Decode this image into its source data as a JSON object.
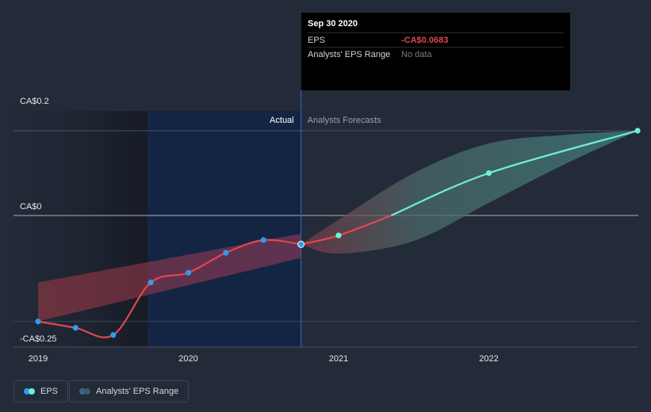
{
  "chart_data": {
    "type": "line",
    "x_ticks": [
      "2019",
      "2020",
      "2021",
      "2022"
    ],
    "y_ticks": [
      "CA$0.2",
      "CA$0",
      "-CA$0.25"
    ],
    "ylim": [
      -0.25,
      0.2
    ],
    "xlim": [
      2019.0,
      2022.99
    ],
    "region_labels": {
      "actual": "Actual",
      "forecast": "Analysts Forecasts"
    },
    "split_x": 2020.75,
    "colors": {
      "eps": "#e2464f",
      "forecast": "#6ef0d8",
      "eps_marker": "#2d9cf0"
    },
    "series": [
      {
        "name": "EPS",
        "x": [
          2019.0,
          2019.25,
          2019.5,
          2019.75,
          2020.0,
          2020.25,
          2020.5,
          2020.75
        ],
        "y": [
          -0.25,
          -0.265,
          -0.282,
          -0.158,
          -0.135,
          -0.088,
          -0.058,
          -0.068
        ]
      },
      {
        "name": "EPS Forecast",
        "x": [
          2020.75,
          2021.0,
          2021.35,
          2022.0,
          2022.99
        ],
        "y": [
          -0.068,
          -0.047,
          0.0,
          0.1,
          0.2
        ]
      }
    ],
    "range_band": {
      "name": "Analysts' EPS Range",
      "actual": {
        "x": [
          2019.0,
          2020.75
        ],
        "upper": [
          -0.158,
          -0.043
        ],
        "lower": [
          -0.25,
          -0.1
        ]
      },
      "forecast": {
        "x": [
          2020.75,
          2021.0,
          2021.5,
          2022.0,
          2022.5,
          2022.99
        ],
        "upper": [
          -0.068,
          -0.01,
          0.1,
          0.17,
          0.19,
          0.2
        ],
        "lower": [
          -0.068,
          -0.09,
          -0.06,
          0.03,
          0.12,
          0.2
        ]
      }
    }
  },
  "tooltip": {
    "date": "Sep 30 2020",
    "eps_label": "EPS",
    "eps_value": "-CA$0.0683",
    "range_label": "Analysts' EPS Range",
    "range_value": "No data"
  },
  "legend": {
    "eps": "EPS",
    "range": "Analysts' EPS Range"
  }
}
